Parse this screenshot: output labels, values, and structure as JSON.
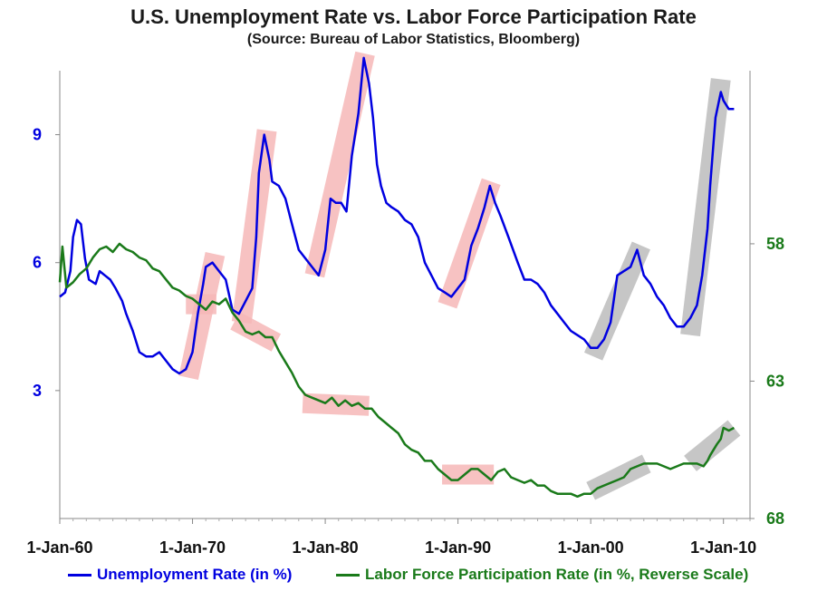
{
  "chart_data": {
    "type": "line",
    "title": "U.S. Unemployment Rate vs. Labor Force Participation Rate",
    "subtitle": "(Source: Bureau of Labor Statistics, Bloomberg)",
    "x_ticks": [
      "1-Jan-60",
      "1-Jan-70",
      "1-Jan-80",
      "1-Jan-90",
      "1-Jan-00",
      "1-Jan-10"
    ],
    "xlim": [
      1960,
      2012
    ],
    "y_left": {
      "ticks": [
        3,
        6,
        9
      ],
      "lim": [
        0,
        10.5
      ],
      "color": "#0000e0"
    },
    "y_right": {
      "ticks": [
        58,
        63,
        68
      ],
      "lim": [
        68,
        51.7
      ],
      "reverse": true,
      "color": "#1a7a1a"
    },
    "series": [
      {
        "name": "Unemployment Rate (in %)",
        "axis": "left",
        "color": "#0000e0",
        "points": [
          [
            1960.0,
            5.2
          ],
          [
            1960.4,
            5.3
          ],
          [
            1960.8,
            5.8
          ],
          [
            1961.0,
            6.6
          ],
          [
            1961.3,
            7.0
          ],
          [
            1961.6,
            6.9
          ],
          [
            1961.9,
            6.1
          ],
          [
            1962.2,
            5.6
          ],
          [
            1962.7,
            5.5
          ],
          [
            1963.0,
            5.8
          ],
          [
            1963.4,
            5.7
          ],
          [
            1963.8,
            5.6
          ],
          [
            1964.2,
            5.4
          ],
          [
            1964.7,
            5.1
          ],
          [
            1965.0,
            4.8
          ],
          [
            1965.5,
            4.4
          ],
          [
            1966.0,
            3.9
          ],
          [
            1966.5,
            3.8
          ],
          [
            1967.0,
            3.8
          ],
          [
            1967.5,
            3.9
          ],
          [
            1968.0,
            3.7
          ],
          [
            1968.5,
            3.5
          ],
          [
            1969.0,
            3.4
          ],
          [
            1969.5,
            3.5
          ],
          [
            1970.0,
            3.9
          ],
          [
            1970.4,
            4.8
          ],
          [
            1970.8,
            5.5
          ],
          [
            1971.0,
            5.9
          ],
          [
            1971.5,
            6.0
          ],
          [
            1972.0,
            5.8
          ],
          [
            1972.5,
            5.6
          ],
          [
            1973.0,
            4.9
          ],
          [
            1973.5,
            4.8
          ],
          [
            1974.0,
            5.1
          ],
          [
            1974.5,
            5.4
          ],
          [
            1974.8,
            6.6
          ],
          [
            1975.0,
            8.1
          ],
          [
            1975.4,
            9.0
          ],
          [
            1975.8,
            8.4
          ],
          [
            1976.0,
            7.9
          ],
          [
            1976.5,
            7.8
          ],
          [
            1977.0,
            7.5
          ],
          [
            1977.5,
            6.9
          ],
          [
            1978.0,
            6.3
          ],
          [
            1978.5,
            6.1
          ],
          [
            1979.0,
            5.9
          ],
          [
            1979.5,
            5.7
          ],
          [
            1980.0,
            6.3
          ],
          [
            1980.4,
            7.5
          ],
          [
            1980.8,
            7.4
          ],
          [
            1981.2,
            7.4
          ],
          [
            1981.6,
            7.2
          ],
          [
            1982.0,
            8.5
          ],
          [
            1982.5,
            9.5
          ],
          [
            1982.9,
            10.8
          ],
          [
            1983.3,
            10.2
          ],
          [
            1983.6,
            9.4
          ],
          [
            1983.9,
            8.3
          ],
          [
            1984.2,
            7.8
          ],
          [
            1984.6,
            7.4
          ],
          [
            1985.0,
            7.3
          ],
          [
            1985.5,
            7.2
          ],
          [
            1986.0,
            7.0
          ],
          [
            1986.5,
            6.9
          ],
          [
            1987.0,
            6.6
          ],
          [
            1987.5,
            6.0
          ],
          [
            1988.0,
            5.7
          ],
          [
            1988.5,
            5.4
          ],
          [
            1989.0,
            5.3
          ],
          [
            1989.5,
            5.2
          ],
          [
            1990.0,
            5.4
          ],
          [
            1990.5,
            5.6
          ],
          [
            1991.0,
            6.4
          ],
          [
            1991.5,
            6.8
          ],
          [
            1992.0,
            7.3
          ],
          [
            1992.4,
            7.8
          ],
          [
            1992.8,
            7.4
          ],
          [
            1993.2,
            7.1
          ],
          [
            1993.8,
            6.6
          ],
          [
            1994.5,
            6.0
          ],
          [
            1995.0,
            5.6
          ],
          [
            1995.5,
            5.6
          ],
          [
            1996.0,
            5.5
          ],
          [
            1996.5,
            5.3
          ],
          [
            1997.0,
            5.0
          ],
          [
            1997.5,
            4.8
          ],
          [
            1998.0,
            4.6
          ],
          [
            1998.5,
            4.4
          ],
          [
            1999.0,
            4.3
          ],
          [
            1999.5,
            4.2
          ],
          [
            2000.0,
            4.0
          ],
          [
            2000.5,
            4.0
          ],
          [
            2001.0,
            4.2
          ],
          [
            2001.5,
            4.6
          ],
          [
            2002.0,
            5.7
          ],
          [
            2002.5,
            5.8
          ],
          [
            2003.0,
            5.9
          ],
          [
            2003.5,
            6.3
          ],
          [
            2004.0,
            5.7
          ],
          [
            2004.5,
            5.5
          ],
          [
            2005.0,
            5.2
          ],
          [
            2005.5,
            5.0
          ],
          [
            2006.0,
            4.7
          ],
          [
            2006.5,
            4.5
          ],
          [
            2007.0,
            4.5
          ],
          [
            2007.5,
            4.7
          ],
          [
            2008.0,
            5.0
          ],
          [
            2008.4,
            5.7
          ],
          [
            2008.8,
            6.8
          ],
          [
            2009.0,
            7.8
          ],
          [
            2009.4,
            9.4
          ],
          [
            2009.8,
            10.0
          ],
          [
            2010.0,
            9.8
          ],
          [
            2010.4,
            9.6
          ],
          [
            2010.8,
            9.6
          ]
        ]
      },
      {
        "name": "Labor Force Participation Rate (in %, Reverse Scale)",
        "axis": "right",
        "color": "#1a7a1a",
        "points": [
          [
            1960.0,
            59.4
          ],
          [
            1960.2,
            58.1
          ],
          [
            1960.5,
            59.6
          ],
          [
            1961.0,
            59.4
          ],
          [
            1961.5,
            59.1
          ],
          [
            1962.0,
            58.9
          ],
          [
            1962.5,
            58.5
          ],
          [
            1963.0,
            58.2
          ],
          [
            1963.5,
            58.1
          ],
          [
            1964.0,
            58.3
          ],
          [
            1964.5,
            58.0
          ],
          [
            1965.0,
            58.2
          ],
          [
            1965.5,
            58.3
          ],
          [
            1966.0,
            58.5
          ],
          [
            1966.5,
            58.6
          ],
          [
            1967.0,
            58.9
          ],
          [
            1967.5,
            59.0
          ],
          [
            1968.0,
            59.3
          ],
          [
            1968.5,
            59.6
          ],
          [
            1969.0,
            59.7
          ],
          [
            1969.5,
            59.9
          ],
          [
            1970.0,
            60.0
          ],
          [
            1970.5,
            60.2
          ],
          [
            1971.0,
            60.4
          ],
          [
            1971.5,
            60.1
          ],
          [
            1972.0,
            60.2
          ],
          [
            1972.5,
            60.0
          ],
          [
            1973.0,
            60.5
          ],
          [
            1973.5,
            60.8
          ],
          [
            1974.0,
            61.2
          ],
          [
            1974.5,
            61.3
          ],
          [
            1975.0,
            61.2
          ],
          [
            1975.5,
            61.4
          ],
          [
            1976.0,
            61.4
          ],
          [
            1976.5,
            61.9
          ],
          [
            1977.0,
            62.3
          ],
          [
            1977.5,
            62.7
          ],
          [
            1978.0,
            63.2
          ],
          [
            1978.5,
            63.5
          ],
          [
            1979.0,
            63.6
          ],
          [
            1979.5,
            63.7
          ],
          [
            1980.0,
            63.8
          ],
          [
            1980.5,
            63.6
          ],
          [
            1981.0,
            63.9
          ],
          [
            1981.5,
            63.7
          ],
          [
            1982.0,
            63.9
          ],
          [
            1982.5,
            63.8
          ],
          [
            1983.0,
            64.0
          ],
          [
            1983.5,
            64.0
          ],
          [
            1984.0,
            64.3
          ],
          [
            1984.5,
            64.5
          ],
          [
            1985.0,
            64.7
          ],
          [
            1985.5,
            64.9
          ],
          [
            1986.0,
            65.3
          ],
          [
            1986.5,
            65.5
          ],
          [
            1987.0,
            65.6
          ],
          [
            1987.5,
            65.9
          ],
          [
            1988.0,
            65.9
          ],
          [
            1988.5,
            66.2
          ],
          [
            1989.0,
            66.4
          ],
          [
            1989.5,
            66.6
          ],
          [
            1990.0,
            66.6
          ],
          [
            1990.5,
            66.4
          ],
          [
            1991.0,
            66.2
          ],
          [
            1991.5,
            66.2
          ],
          [
            1992.0,
            66.4
          ],
          [
            1992.5,
            66.6
          ],
          [
            1993.0,
            66.3
          ],
          [
            1993.5,
            66.2
          ],
          [
            1994.0,
            66.5
          ],
          [
            1994.5,
            66.6
          ],
          [
            1995.0,
            66.7
          ],
          [
            1995.5,
            66.6
          ],
          [
            1996.0,
            66.8
          ],
          [
            1996.5,
            66.8
          ],
          [
            1997.0,
            67.0
          ],
          [
            1997.5,
            67.1
          ],
          [
            1998.0,
            67.1
          ],
          [
            1998.5,
            67.1
          ],
          [
            1999.0,
            67.2
          ],
          [
            1999.5,
            67.1
          ],
          [
            2000.0,
            67.1
          ],
          [
            2000.5,
            66.9
          ],
          [
            2001.0,
            66.8
          ],
          [
            2001.5,
            66.7
          ],
          [
            2002.0,
            66.6
          ],
          [
            2002.5,
            66.5
          ],
          [
            2003.0,
            66.2
          ],
          [
            2003.5,
            66.1
          ],
          [
            2004.0,
            66.0
          ],
          [
            2004.5,
            66.0
          ],
          [
            2005.0,
            66.0
          ],
          [
            2005.5,
            66.1
          ],
          [
            2006.0,
            66.2
          ],
          [
            2006.5,
            66.1
          ],
          [
            2007.0,
            66.0
          ],
          [
            2007.5,
            66.0
          ],
          [
            2008.0,
            66.0
          ],
          [
            2008.5,
            66.1
          ],
          [
            2008.8,
            65.9
          ],
          [
            2009.0,
            65.7
          ],
          [
            2009.5,
            65.3
          ],
          [
            2009.8,
            65.1
          ],
          [
            2010.0,
            64.7
          ],
          [
            2010.4,
            64.8
          ],
          [
            2010.8,
            64.7
          ]
        ]
      }
    ],
    "highlights": [
      {
        "axis": "left",
        "color": "pink",
        "from": [
          1969.7,
          3.3
        ],
        "to": [
          1971.7,
          6.2
        ]
      },
      {
        "axis": "left",
        "color": "pink",
        "from": [
          1973.7,
          4.6
        ],
        "to": [
          1975.6,
          9.1
        ]
      },
      {
        "axis": "left",
        "color": "pink",
        "from": [
          1979.2,
          5.7
        ],
        "to": [
          1983.0,
          10.9
        ]
      },
      {
        "axis": "left",
        "color": "pink",
        "from": [
          1989.2,
          5.0
        ],
        "to": [
          1992.5,
          7.9
        ]
      },
      {
        "axis": "left",
        "color": "gray",
        "from": [
          2000.2,
          3.8
        ],
        "to": [
          2003.8,
          6.4
        ]
      },
      {
        "axis": "left",
        "color": "gray",
        "from": [
          2007.5,
          4.3
        ],
        "to": [
          2009.8,
          10.3
        ]
      },
      {
        "axis": "right",
        "color": "pink",
        "from": [
          1969.5,
          60.2
        ],
        "to": [
          1971.8,
          60.2
        ]
      },
      {
        "axis": "right",
        "color": "pink",
        "from": [
          1973.2,
          60.8
        ],
        "to": [
          1976.3,
          61.6
        ]
      },
      {
        "axis": "right",
        "color": "pink",
        "from": [
          1978.3,
          63.8
        ],
        "to": [
          1983.3,
          63.9
        ]
      },
      {
        "axis": "right",
        "color": "pink",
        "from": [
          1988.8,
          66.4
        ],
        "to": [
          1992.7,
          66.4
        ]
      },
      {
        "axis": "right",
        "color": "gray",
        "from": [
          2000.0,
          67.0
        ],
        "to": [
          2004.2,
          66.0
        ]
      },
      {
        "axis": "right",
        "color": "gray",
        "from": [
          2007.5,
          66.0
        ],
        "to": [
          2010.8,
          64.7
        ]
      }
    ]
  },
  "legend": [
    {
      "label": "Unemployment Rate (in %)",
      "color": "#0000e0"
    },
    {
      "label": "Labor Force Participation Rate (in %, Reverse Scale)",
      "color": "#1a7a1a"
    }
  ]
}
